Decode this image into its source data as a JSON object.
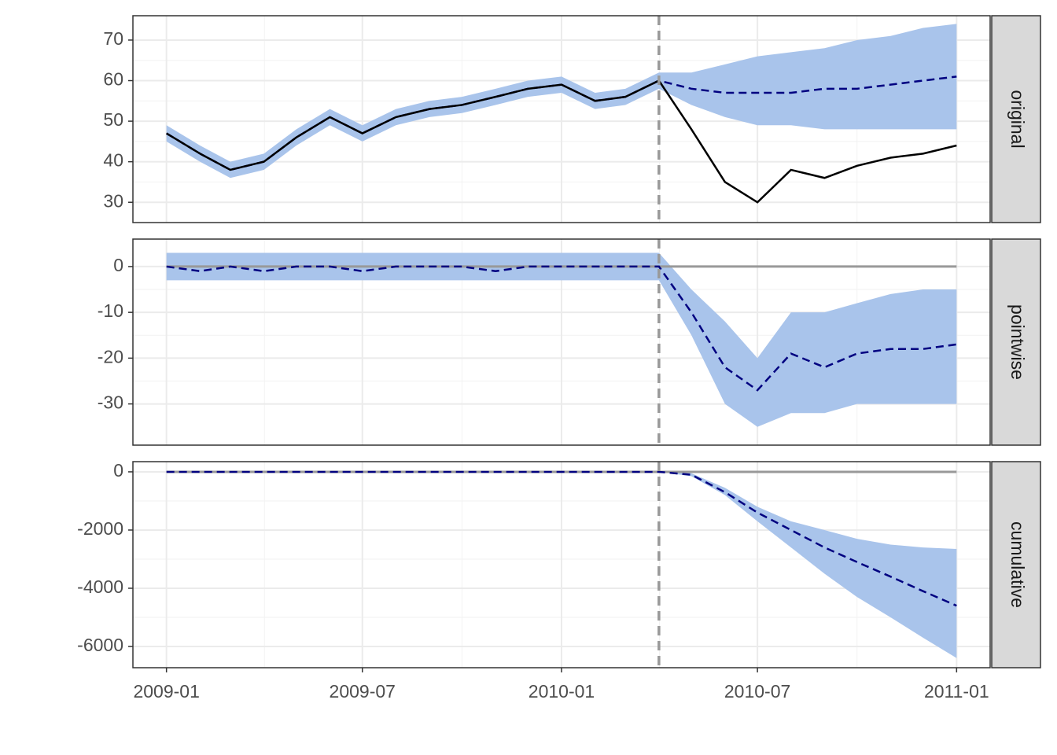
{
  "chart_data": [
    {
      "type": "line",
      "label": "original",
      "x": [
        "2009-01",
        "2009-02",
        "2009-03",
        "2009-04",
        "2009-05",
        "2009-06",
        "2009-07",
        "2009-08",
        "2009-09",
        "2009-10",
        "2009-11",
        "2009-12",
        "2010-01",
        "2010-02",
        "2010-03",
        "2010-04",
        "2010-05",
        "2010-06",
        "2010-07",
        "2010-08",
        "2010-09",
        "2010-10",
        "2010-11",
        "2010-12",
        "2011-01"
      ],
      "xlim": [
        "2008-12",
        "2011-02"
      ],
      "xticks": [
        "2009-01",
        "2009-07",
        "2010-01",
        "2010-07",
        "2011-01"
      ],
      "ylim": [
        25,
        76
      ],
      "yticks": [
        30,
        40,
        50,
        60,
        70
      ],
      "grid": true,
      "intervention": "2010-04",
      "band": {
        "color": "#a9c4eb",
        "lower": [
          45,
          40,
          36,
          38,
          44,
          49,
          45,
          49,
          51,
          52,
          54,
          56,
          57,
          53,
          54,
          58,
          54,
          51,
          49,
          49,
          48,
          48,
          48,
          48,
          48
        ],
        "upper": [
          49,
          44,
          40,
          42,
          48,
          53,
          49,
          53,
          55,
          56,
          58,
          60,
          61,
          57,
          58,
          62,
          62,
          64,
          66,
          67,
          68,
          70,
          71,
          73,
          74
        ]
      },
      "lines": [
        {
          "color": "#000080",
          "dash": true,
          "values": [
            47,
            42,
            38,
            40,
            46,
            51,
            47,
            51,
            53,
            54,
            56,
            58,
            59,
            55,
            56,
            60,
            58,
            57,
            57,
            57,
            58,
            58,
            59,
            60,
            61
          ]
        },
        {
          "color": "#000000",
          "dash": false,
          "values": [
            47,
            42,
            38,
            40,
            46,
            51,
            47,
            51,
            53,
            54,
            56,
            58,
            59,
            55,
            56,
            60,
            48,
            35,
            30,
            38,
            36,
            39,
            41,
            42,
            44
          ]
        }
      ]
    },
    {
      "type": "line",
      "label": "pointwise",
      "x": [
        "2009-01",
        "2009-02",
        "2009-03",
        "2009-04",
        "2009-05",
        "2009-06",
        "2009-07",
        "2009-08",
        "2009-09",
        "2009-10",
        "2009-11",
        "2009-12",
        "2010-01",
        "2010-02",
        "2010-03",
        "2010-04",
        "2010-05",
        "2010-06",
        "2010-07",
        "2010-08",
        "2010-09",
        "2010-10",
        "2010-11",
        "2010-12",
        "2011-01"
      ],
      "xlim": [
        "2008-12",
        "2011-02"
      ],
      "xticks": [
        "2009-01",
        "2009-07",
        "2010-01",
        "2010-07",
        "2011-01"
      ],
      "ylim": [
        -39,
        6
      ],
      "yticks": [
        0,
        -10,
        -20,
        -30
      ],
      "grid": true,
      "intervention": "2010-04",
      "reference_line": 0,
      "band": {
        "color": "#a9c4eb",
        "lower": [
          -3,
          -3,
          -3,
          -3,
          -3,
          -3,
          -3,
          -3,
          -3,
          -3,
          -3,
          -3,
          -3,
          -3,
          -3,
          -3,
          -15,
          -30,
          -35,
          -32,
          -32,
          -30,
          -30,
          -30,
          -30
        ],
        "upper": [
          3,
          3,
          3,
          3,
          3,
          3,
          3,
          3,
          3,
          3,
          3,
          3,
          3,
          3,
          3,
          3,
          -5,
          -12,
          -20,
          -10,
          -10,
          -8,
          -6,
          -5,
          -5
        ]
      },
      "lines": [
        {
          "color": "#000080",
          "dash": true,
          "values": [
            0,
            -1,
            0,
            -1,
            0,
            0,
            -1,
            0,
            0,
            0,
            -1,
            0,
            0,
            0,
            0,
            0,
            -10,
            -22,
            -27,
            -19,
            -22,
            -19,
            -18,
            -18,
            -17
          ]
        }
      ]
    },
    {
      "type": "line",
      "label": "cumulative",
      "x": [
        "2009-01",
        "2009-02",
        "2009-03",
        "2009-04",
        "2009-05",
        "2009-06",
        "2009-07",
        "2009-08",
        "2009-09",
        "2009-10",
        "2009-11",
        "2009-12",
        "2010-01",
        "2010-02",
        "2010-03",
        "2010-04",
        "2010-05",
        "2010-06",
        "2010-07",
        "2010-08",
        "2010-09",
        "2010-10",
        "2010-11",
        "2010-12",
        "2011-01"
      ],
      "xlim": [
        "2008-12",
        "2011-02"
      ],
      "xticks": [
        "2009-01",
        "2009-07",
        "2010-01",
        "2010-07",
        "2011-01"
      ],
      "ylim": [
        -6730,
        350
      ],
      "yticks": [
        0,
        -2000,
        -4000,
        -6000
      ],
      "grid": true,
      "intervention": "2010-04",
      "reference_line": 0,
      "band": {
        "color": "#a9c4eb",
        "lower": [
          0,
          0,
          0,
          0,
          0,
          0,
          0,
          0,
          0,
          0,
          0,
          0,
          0,
          0,
          0,
          0,
          -150,
          -800,
          -1700,
          -2600,
          -3500,
          -4300,
          -5000,
          -5700,
          -6400
        ],
        "upper": [
          0,
          0,
          0,
          0,
          0,
          0,
          0,
          0,
          0,
          0,
          0,
          0,
          0,
          0,
          0,
          0,
          -50,
          -550,
          -1200,
          -1700,
          -2000,
          -2300,
          -2500,
          -2600,
          -2650
        ]
      },
      "lines": [
        {
          "color": "#000080",
          "dash": true,
          "values": [
            0,
            0,
            0,
            0,
            0,
            0,
            0,
            0,
            0,
            0,
            0,
            0,
            0,
            0,
            0,
            0,
            -100,
            -700,
            -1400,
            -2000,
            -2600,
            -3100,
            -3600,
            -4100,
            -4600
          ]
        }
      ]
    }
  ]
}
